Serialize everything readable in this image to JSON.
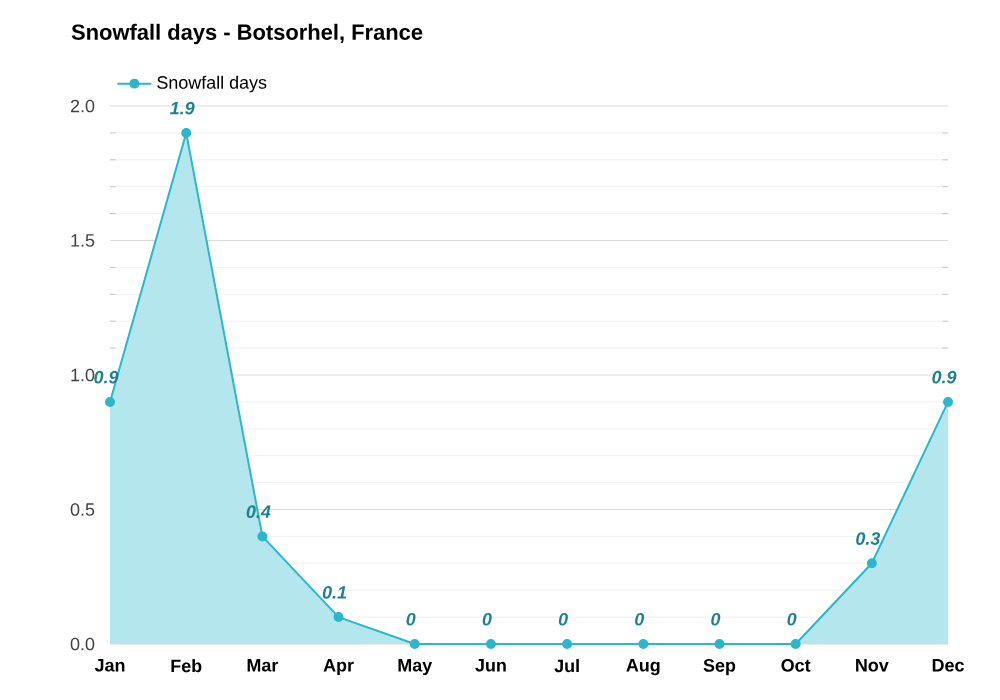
{
  "chart_data": {
    "type": "area",
    "title": "Snowfall days - Botsorhel, France",
    "categories": [
      "Jan",
      "Feb",
      "Mar",
      "Apr",
      "May",
      "Jun",
      "Jul",
      "Aug",
      "Sep",
      "Oct",
      "Nov",
      "Dec"
    ],
    "series": [
      {
        "name": "Snowfall days",
        "color": "#2ab7cc",
        "values": [
          0.9,
          1.9,
          0.4,
          0.1,
          0,
          0,
          0,
          0,
          0,
          0,
          0.3,
          0.9
        ],
        "value_labels": [
          "0.9",
          "1.9",
          "0.4",
          "0.1",
          "0",
          "0",
          "0",
          "0",
          "0",
          "0",
          "0.3",
          "0.9"
        ]
      }
    ],
    "ylim": [
      0,
      2
    ],
    "yticks": [
      {
        "value": 0,
        "label": "0.0"
      },
      {
        "value": 0.5,
        "label": "0.5"
      },
      {
        "value": 1,
        "label": "1.0"
      },
      {
        "value": 1.5,
        "label": "1.5"
      },
      {
        "value": 2,
        "label": "2.0"
      }
    ],
    "grid": "y",
    "legend": "top left",
    "marker": "circle"
  }
}
